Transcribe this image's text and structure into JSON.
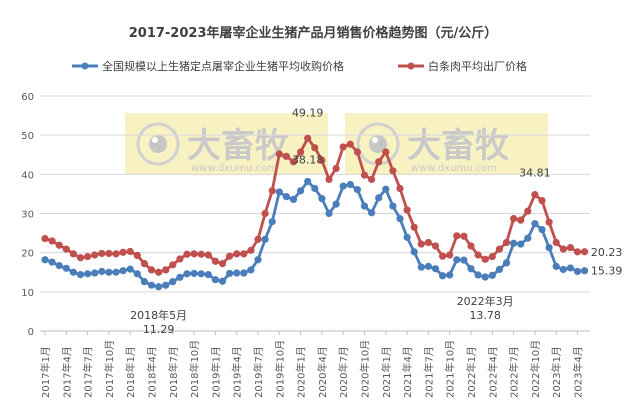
{
  "chart_data": {
    "type": "line",
    "title": "2017-2023年屠宰企业生猪产品月销售价格趋势图（元/公斤）",
    "xlabel": "",
    "ylabel": "",
    "ylim": [
      0,
      60
    ],
    "yticks": [
      0,
      10,
      20,
      30,
      40,
      50,
      60
    ],
    "grid": true,
    "legend_position": "top",
    "x_tick_labels": [
      "2017年1月",
      "2017年4月",
      "2017年7月",
      "2017年10月",
      "2018年1月",
      "2018年4月",
      "2018年7月",
      "2018年10月",
      "2019年1月",
      "2019年4月",
      "2019年7月",
      "2019年10月",
      "2020年1月",
      "2020年4月",
      "2020年7月",
      "2020年10月",
      "2021年1月",
      "2021年4月",
      "2021年7月",
      "2021年10月",
      "2022年1月",
      "2022年4月",
      "2022年7月",
      "2022年10月",
      "2023年1月",
      "2023年4月"
    ],
    "x_start": "2017年1月",
    "x_end": "2023年5月",
    "series": [
      {
        "name": "全国规模以上生猪定点屠宰企业生猪平均收购价格",
        "color": "#4a7ebb",
        "values": [
          18.2,
          17.6,
          16.7,
          16.0,
          15.0,
          14.4,
          14.6,
          14.8,
          15.2,
          15.0,
          15.0,
          15.4,
          15.8,
          14.6,
          12.6,
          11.7,
          11.29,
          11.7,
          12.6,
          13.7,
          14.6,
          14.7,
          14.6,
          14.4,
          13.1,
          12.7,
          14.7,
          14.8,
          14.8,
          15.6,
          18.2,
          23.4,
          27.9,
          35.5,
          34.3,
          33.6,
          35.8,
          38.18,
          36.4,
          33.8,
          30.0,
          32.4,
          37.0,
          37.4,
          36.1,
          31.9,
          30.2,
          34.0,
          36.2,
          31.9,
          28.7,
          23.9,
          20.2,
          16.3,
          16.5,
          15.9,
          14.1,
          14.3,
          18.2,
          18.1,
          15.9,
          14.3,
          13.78,
          14.2,
          15.7,
          17.4,
          22.4,
          22.2,
          23.7,
          27.4,
          25.9,
          21.3,
          16.5,
          15.7,
          16.1,
          15.2,
          15.39
        ]
      },
      {
        "name": "白条肉平均出厂价格",
        "color": "#c0504d",
        "values": [
          23.6,
          23.0,
          21.9,
          20.9,
          19.7,
          18.7,
          19.0,
          19.4,
          19.8,
          19.8,
          19.7,
          20.1,
          20.3,
          19.3,
          17.2,
          15.6,
          15.0,
          15.6,
          16.9,
          18.4,
          19.6,
          19.7,
          19.6,
          19.4,
          17.8,
          17.2,
          19.1,
          19.7,
          19.7,
          20.6,
          23.4,
          30.0,
          35.8,
          45.2,
          44.6,
          43.2,
          45.7,
          49.19,
          46.8,
          43.6,
          38.7,
          41.5,
          47.0,
          47.7,
          45.7,
          39.8,
          38.7,
          43.2,
          45.7,
          40.9,
          36.4,
          30.9,
          26.5,
          22.2,
          22.6,
          21.7,
          19.1,
          19.4,
          24.3,
          24.2,
          21.7,
          19.4,
          18.3,
          19.0,
          20.9,
          22.6,
          28.7,
          28.3,
          30.6,
          34.81,
          33.3,
          27.8,
          22.6,
          20.9,
          21.3,
          20.2,
          20.23
        ]
      }
    ],
    "annotations": [
      {
        "series": 0,
        "index": 16,
        "lines": [
          "2018年5月",
          "11.29"
        ]
      },
      {
        "series": 1,
        "index": 37,
        "lines": [
          "49.19"
        ]
      },
      {
        "series": 0,
        "index": 37,
        "lines": [
          "38.18"
        ]
      },
      {
        "series": 0,
        "index": 62,
        "lines": [
          "2022年3月",
          "13.78"
        ]
      },
      {
        "series": 1,
        "index": 69,
        "lines": [
          "34.81"
        ]
      },
      {
        "series": 1,
        "index": 76,
        "lines": [
          "20.23"
        ]
      },
      {
        "series": 0,
        "index": 76,
        "lines": [
          "15.39"
        ]
      }
    ]
  },
  "watermark": {
    "brand": "大畜牧",
    "url": "www.dxumu.com"
  }
}
